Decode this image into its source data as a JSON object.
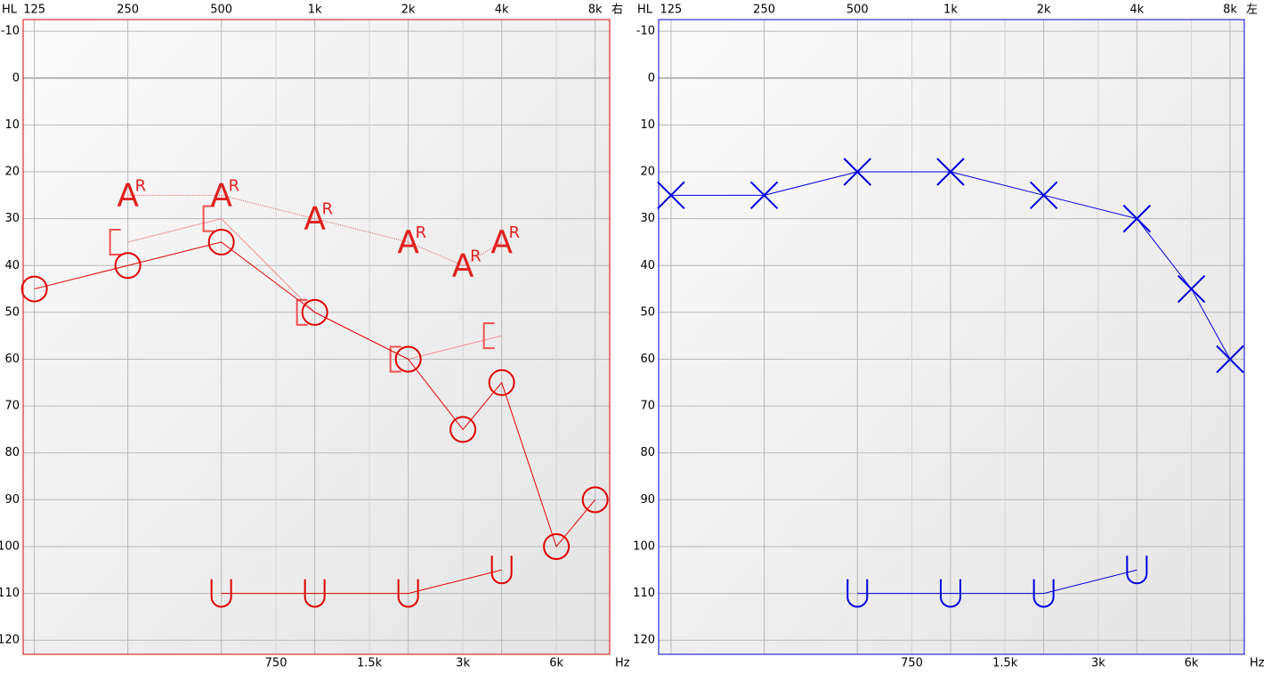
{
  "chart_data": [
    {
      "type": "line",
      "ear_label": "右",
      "y_unit": "HL",
      "x_unit": "Hz",
      "color": "#e00000",
      "xscale": "log",
      "yreversed": true,
      "grid": true,
      "xlim": [
        115,
        8910
      ],
      "ylim": [
        -12.5,
        123
      ],
      "xticks": [
        125,
        250,
        500,
        {
          "value": 1000,
          "label": "1k"
        },
        {
          "value": 2000,
          "label": "2k"
        },
        {
          "value": 4000,
          "label": "4k"
        },
        {
          "value": 8000,
          "label": "8k"
        }
      ],
      "xticks_minor": [
        750,
        {
          "value": 1500,
          "label": "1.5k"
        },
        {
          "value": 3000,
          "label": "3k"
        },
        {
          "value": 6000,
          "label": "6k"
        }
      ],
      "yticks": [
        -10,
        0,
        10,
        20,
        30,
        40,
        50,
        60,
        70,
        80,
        90,
        100,
        110,
        120
      ],
      "series": [
        {
          "marker": "bracket",
          "color": "#f05050",
          "line_style": "thin",
          "x": [
            250,
            500,
            1000,
            2000,
            4000
          ],
          "values": [
            35,
            30,
            50,
            60,
            55
          ]
        },
        {
          "marker": "text",
          "marker_text": "A",
          "marker_sup": "R",
          "color": "#e02020",
          "line_style": "dotted",
          "x": [
            250,
            500,
            1000,
            2000,
            3000,
            4000
          ],
          "values": [
            25,
            25,
            30,
            35,
            40,
            35
          ]
        },
        {
          "marker": "circle",
          "color": "#e00000",
          "line_style": "solid",
          "x": [
            125,
            250,
            500,
            1000,
            2000,
            3000,
            4000,
            6000,
            8000
          ],
          "values": [
            45,
            40,
            35,
            50,
            60,
            75,
            65,
            100,
            90
          ]
        },
        {
          "marker": "U",
          "color": "#e00000",
          "line_style": "solid",
          "x": [
            500,
            1000,
            2000,
            4000
          ],
          "values": [
            110,
            110,
            110,
            105
          ]
        }
      ]
    },
    {
      "type": "line",
      "ear_label": "左",
      "y_unit": "HL",
      "x_unit": "Hz",
      "color": "#0000e0",
      "xscale": "log",
      "yreversed": true,
      "grid": true,
      "xlim": [
        114,
        8894
      ],
      "ylim": [
        -12.5,
        123
      ],
      "xticks": [
        125,
        250,
        500,
        {
          "value": 1000,
          "label": "1k"
        },
        {
          "value": 2000,
          "label": "2k"
        },
        {
          "value": 4000,
          "label": "4k"
        },
        {
          "value": 8000,
          "label": "8k"
        }
      ],
      "xticks_minor": [
        750,
        {
          "value": 1500,
          "label": "1.5k"
        },
        {
          "value": 3000,
          "label": "3k"
        },
        {
          "value": 6000,
          "label": "6k"
        }
      ],
      "yticks": [
        -10,
        0,
        10,
        20,
        30,
        40,
        50,
        60,
        70,
        80,
        90,
        100,
        110,
        120
      ],
      "series": [
        {
          "marker": "x",
          "color": "#0000e0",
          "line_style": "solid",
          "x": [
            125,
            250,
            500,
            1000,
            2000,
            4000,
            6000,
            8000
          ],
          "values": [
            25,
            25,
            20,
            20,
            25,
            30,
            45,
            60
          ]
        },
        {
          "marker": "U",
          "color": "#0000e0",
          "line_style": "solid",
          "x": [
            500,
            1000,
            2000,
            4000
          ],
          "values": [
            110,
            110,
            110,
            105
          ]
        }
      ]
    }
  ]
}
